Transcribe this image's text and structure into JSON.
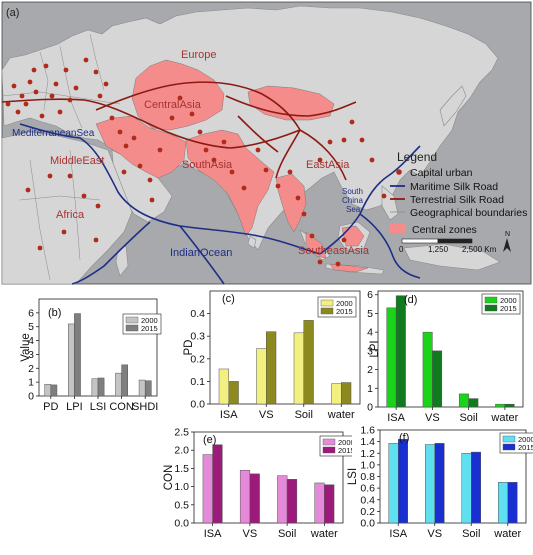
{
  "map": {
    "panel_label": "(a)",
    "region_labels": [
      "Europe",
      "CentralAsia",
      "MediterraneanSea",
      "MiddleEast",
      "SouthAsia",
      "EastAsia",
      "Africa",
      "IndianOcean",
      "SoutheastAsia"
    ],
    "sea_label_lines": [
      "South",
      "China",
      "Sea"
    ],
    "legend": {
      "title": "Legend",
      "items": [
        "Capital urban",
        "Maritime  Silk Road",
        "Terrestrial Silk Road",
        "Geographical boundaries",
        "Central zones"
      ]
    },
    "scale_labels": [
      "0",
      "1,250",
      "2,500 Km"
    ],
    "north_label": "N",
    "colors": {
      "ocean": "#a7a9ac",
      "land": "#d6d6d6",
      "central": "#f48c8c",
      "label": "#a83232",
      "capital": "#b22a1a",
      "maritime": "#1f2e85",
      "terrestrial": "#8c1a12"
    }
  },
  "chart_data": [
    {
      "panel_label": "(b)",
      "type": "bar",
      "categories": [
        "PD",
        "LPI",
        "LSI",
        "CON",
        "SHDI"
      ],
      "series": [
        {
          "name": "2000",
          "values": [
            0.85,
            5.2,
            1.25,
            1.65,
            1.15
          ],
          "color": "#c4c4c4"
        },
        {
          "name": "2015",
          "values": [
            0.8,
            5.95,
            1.3,
            2.25,
            1.1
          ],
          "color": "#7f7f7f"
        }
      ],
      "xlabel": "",
      "ylabel": "Value",
      "ylim": [
        0,
        7
      ],
      "yticks": [
        0,
        1,
        2,
        3,
        4,
        5,
        6
      ],
      "yticklabels": [
        "0",
        "1",
        "2",
        "3",
        "4",
        "5",
        "6"
      ],
      "legend_position": "top-right"
    },
    {
      "panel_label": "(c)",
      "type": "bar",
      "categories": [
        "ISA",
        "VS",
        "Soil",
        "water"
      ],
      "series": [
        {
          "name": "2000",
          "values": [
            0.155,
            0.245,
            0.315,
            0.09
          ],
          "color": "#f2f080"
        },
        {
          "name": "2015",
          "values": [
            0.1,
            0.32,
            0.37,
            0.095
          ],
          "color": "#8c8a1e"
        }
      ],
      "xlabel": "",
      "ylabel": "PD",
      "ylim": [
        0,
        0.5
      ],
      "yticks": [
        0,
        0.1,
        0.2,
        0.3,
        0.4
      ],
      "yticklabels": [
        "0.0",
        "0.1",
        "0.2",
        "0.3",
        "0.4"
      ],
      "legend_position": "top-right"
    },
    {
      "panel_label": "(d)",
      "type": "bar",
      "categories": [
        "ISA",
        "VS",
        "Soil",
        "water"
      ],
      "series": [
        {
          "name": "2000",
          "values": [
            5.3,
            4.0,
            0.7,
            0.15
          ],
          "color": "#19d419"
        },
        {
          "name": "2015",
          "values": [
            5.95,
            3.0,
            0.45,
            0.15
          ],
          "color": "#0f7a1e"
        }
      ],
      "xlabel": "",
      "ylabel": "LPI",
      "ylim": [
        0,
        6.2
      ],
      "yticks": [
        0,
        1,
        2,
        3,
        4,
        5,
        6
      ],
      "yticklabels": [
        "0",
        "1",
        "2",
        "3",
        "4",
        "5",
        "6"
      ],
      "legend_position": "top-right"
    },
    {
      "panel_label": "(e)",
      "type": "bar",
      "categories": [
        "ISA",
        "VS",
        "Soil",
        "water"
      ],
      "series": [
        {
          "name": "2000",
          "values": [
            1.88,
            1.45,
            1.3,
            1.1
          ],
          "color": "#e48ad8"
        },
        {
          "name": "2015",
          "values": [
            2.15,
            1.35,
            1.2,
            1.05
          ],
          "color": "#9c1a7a"
        }
      ],
      "xlabel": "",
      "ylabel": "CON",
      "ylim": [
        0,
        2.5
      ],
      "yticks": [
        0,
        0.5,
        1.0,
        1.5,
        2.0,
        2.5
      ],
      "yticklabels": [
        "0.0",
        "0.5",
        "1.0",
        "1.5",
        "2.0",
        "2.5"
      ],
      "legend_position": "top-right"
    },
    {
      "panel_label": "(f)",
      "type": "bar",
      "categories": [
        "ISA",
        "VS",
        "Soil",
        "water"
      ],
      "series": [
        {
          "name": "2000",
          "values": [
            1.37,
            1.35,
            1.2,
            0.7
          ],
          "color": "#5ee0f0"
        },
        {
          "name": "2015",
          "values": [
            1.44,
            1.37,
            1.22,
            0.7
          ],
          "color": "#1a2fd0"
        }
      ],
      "xlabel": "",
      "ylabel": "LSI",
      "ylim": [
        0,
        1.6
      ],
      "yticks": [
        0,
        0.2,
        0.4,
        0.6,
        0.8,
        1.0,
        1.2,
        1.4,
        1.6
      ],
      "yticklabels": [
        "0.0",
        "0.2",
        "0.4",
        "0.6",
        "0.8",
        "1.0",
        "1.2",
        "1.4",
        "1.6"
      ],
      "legend_position": "top-right"
    }
  ]
}
